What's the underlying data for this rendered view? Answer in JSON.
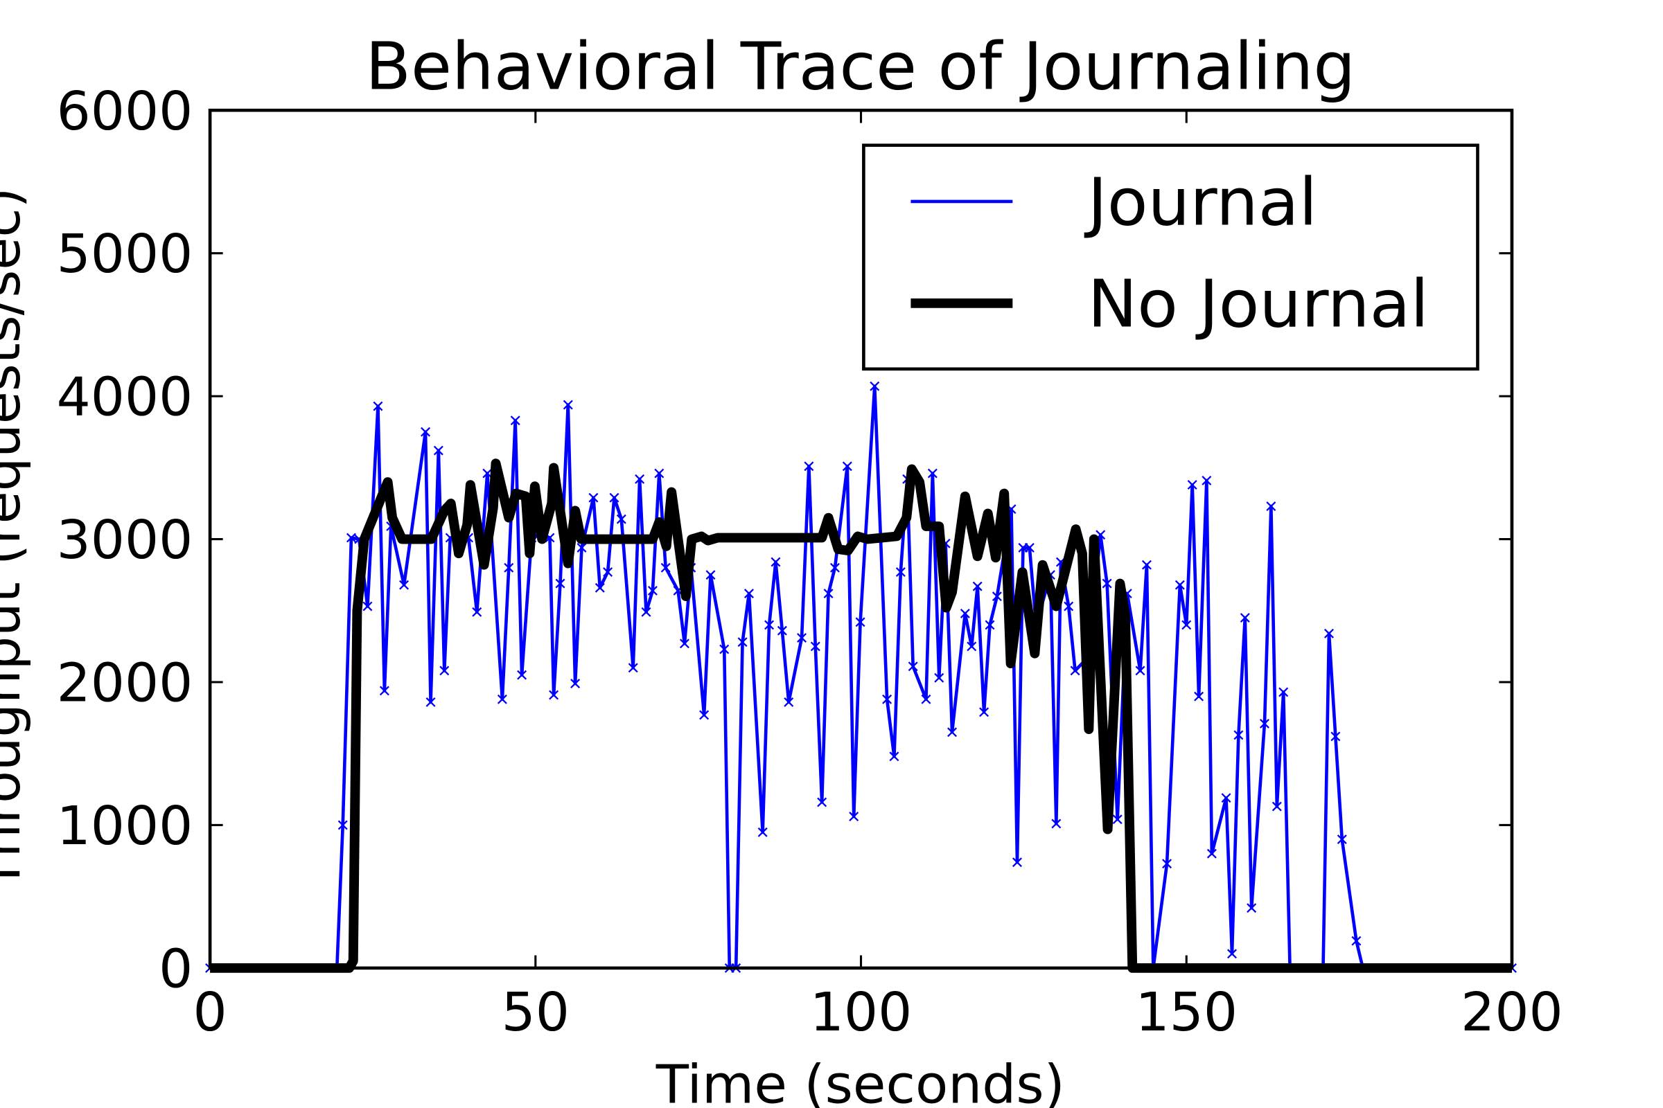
{
  "chart_data": {
    "type": "line",
    "title": "Behavioral Trace of Journaling",
    "xlabel": "Time (seconds)",
    "ylabel": "Throughput (requests/sec)",
    "xlim": [
      0,
      200
    ],
    "xticks": [
      0,
      50,
      100,
      150,
      200
    ],
    "ylim": [
      0,
      6000
    ],
    "yticks": [
      0,
      1000,
      2000,
      3000,
      4000,
      5000,
      6000
    ],
    "legend": "upper right",
    "series": [
      {
        "name": "Journal",
        "color": "#0000ff",
        "marker": "x",
        "x": [
          0,
          19.5,
          20.4,
          21.7,
          22.9,
          24.2,
          25.8,
          26.8,
          27.8,
          29.8,
          33.1,
          33.9,
          35.1,
          36.0,
          36.9,
          39.7,
          41.0,
          42.6,
          44.9,
          45.9,
          46.9,
          47.9,
          49.4,
          50.5,
          52.2,
          52.8,
          53.8,
          55.0,
          56.1,
          57.1,
          58.9,
          59.9,
          61.1,
          62.1,
          63.2,
          65.0,
          66.0,
          67.0,
          68.0,
          69.0,
          70.0,
          71.9,
          72.9,
          73.9,
          75.9,
          76.9,
          79.0,
          79.8,
          80.8,
          81.8,
          82.8,
          84.9,
          85.9,
          86.9,
          87.9,
          88.9,
          90.9,
          92.0,
          93.0,
          94.0,
          95.0,
          96.0,
          97.9,
          98.9,
          99.9,
          102.1,
          104.0,
          105.1,
          106.1,
          107.1,
          108.0,
          110.0,
          111.0,
          112.0,
          113.0,
          114.0,
          116.0,
          117.0,
          117.9,
          118.9,
          119.8,
          120.9,
          123.1,
          124.0,
          124.9,
          125.9,
          126.9,
          129.1,
          130.0,
          130.7,
          131.9,
          132.9,
          134.8,
          136.8,
          137.8,
          139.4,
          140.9,
          142.9,
          143.9,
          144.9,
          147.0,
          149.0,
          150.0,
          150.9,
          151.9,
          153.1,
          153.9,
          156.1,
          157.0,
          158.0,
          159.0,
          160.0,
          162.0,
          163.0,
          163.9,
          164.9,
          165.9,
          171.0,
          171.9,
          172.9,
          173.9,
          176.1,
          177.1,
          200
        ],
        "values": [
          0,
          0,
          1000,
          3010,
          3000,
          2530,
          3930,
          1940,
          3090,
          2680,
          3750,
          1860,
          3620,
          2080,
          3010,
          3010,
          2490,
          3460,
          1880,
          2800,
          3830,
          2050,
          3010,
          3030,
          3010,
          1910,
          2690,
          3940,
          1990,
          2940,
          3290,
          2660,
          2770,
          3290,
          3140,
          2100,
          3420,
          2490,
          2640,
          3460,
          2800,
          2640,
          2270,
          2800,
          1770,
          2750,
          2230,
          0,
          0,
          2280,
          2620,
          950,
          2400,
          2840,
          2360,
          1860,
          2310,
          3510,
          2250,
          1160,
          2620,
          2800,
          3510,
          1060,
          2420,
          4070,
          1880,
          1480,
          2770,
          3420,
          2110,
          1880,
          3460,
          2030,
          2970,
          1650,
          2480,
          2250,
          2670,
          1790,
          2400,
          2600,
          3210,
          740,
          2940,
          2940,
          2400,
          2750,
          1010,
          2840,
          2530,
          2080,
          2170,
          3030,
          2690,
          1040,
          2620,
          2080,
          2820,
          0,
          730,
          2680,
          2400,
          3380,
          1900,
          3410,
          800,
          1190,
          100,
          1630,
          2450,
          420,
          1710,
          3230,
          1130,
          1930,
          0,
          0,
          2340,
          1620,
          900,
          190,
          0,
          0
        ]
      },
      {
        "name": "No Journal",
        "color": "#000000",
        "x": [
          0,
          21.4,
          22,
          22.6,
          23.7,
          25.5,
          27.3,
          28,
          29.5,
          34,
          36,
          37,
          38.2,
          39.5,
          40.0,
          42.1,
          43.5,
          43.9,
          45.9,
          47,
          48.5,
          49.1,
          49.9,
          51,
          52.5,
          52.8,
          55.0,
          56.1,
          57,
          68,
          69,
          70.1,
          70.9,
          73.1,
          74,
          75.5,
          76.5,
          78,
          94,
          95.0,
          96.5,
          98,
          99.5,
          101,
          105.5,
          107,
          107.8,
          109,
          110,
          112,
          113.1,
          114,
          116.0,
          117.9,
          119.5,
          120.7,
          122.0,
          123.0,
          124.8,
          126.7,
          127.9,
          130.0,
          133.0,
          134.0,
          135.0,
          135.8,
          137.9,
          139.8,
          140.6,
          141.7,
          200
        ],
        "values": [
          0,
          0,
          50,
          2500,
          3000,
          3200,
          3400,
          3150,
          3000,
          3000,
          3200,
          3250,
          2900,
          3100,
          3380,
          2820,
          3220,
          3530,
          3150,
          3320,
          3300,
          2900,
          3370,
          3000,
          3250,
          3500,
          2830,
          3200,
          3000,
          3000,
          3120,
          2950,
          3330,
          2600,
          3000,
          3020,
          2990,
          3010,
          3010,
          3150,
          2930,
          2920,
          3020,
          3000,
          3020,
          3150,
          3490,
          3400,
          3090,
          3090,
          2520,
          2630,
          3300,
          2880,
          3180,
          2870,
          3320,
          2130,
          2770,
          2200,
          2820,
          2530,
          3070,
          2900,
          1670,
          3000,
          970,
          2690,
          2470,
          0,
          0
        ]
      }
    ]
  }
}
